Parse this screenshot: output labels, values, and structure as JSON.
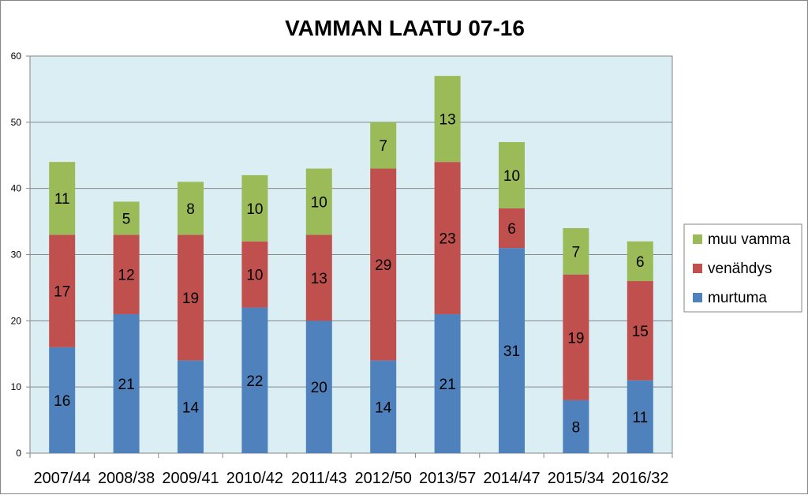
{
  "chart_data": {
    "type": "bar",
    "stacked": true,
    "title": "VAMMAN LAATU 07-16",
    "xlabel": "",
    "ylabel": "",
    "categories": [
      "2007/44",
      "2008/38",
      "2009/41",
      "2010/42",
      "2011/43",
      "2012/50",
      "2013/57",
      "2014/47",
      "2015/34",
      "2016/32"
    ],
    "series": [
      {
        "name": "murtuma",
        "color": "#4f81bd",
        "values": [
          16,
          21,
          14,
          22,
          20,
          14,
          21,
          31,
          8,
          11
        ]
      },
      {
        "name": "venähdys",
        "color": "#c0504d",
        "values": [
          17,
          12,
          19,
          10,
          13,
          29,
          23,
          6,
          19,
          15
        ]
      },
      {
        "name": "muu vamma",
        "color": "#9bbb59",
        "values": [
          11,
          5,
          8,
          10,
          10,
          7,
          13,
          10,
          7,
          6
        ]
      }
    ],
    "ylim": [
      0,
      60
    ],
    "yticks": [
      0,
      10,
      20,
      30,
      40,
      50,
      60
    ],
    "grid": true,
    "legend_position": "right",
    "legend_order": [
      "muu vamma",
      "venähdys",
      "murtuma"
    ],
    "plot_background": "#dbeef4",
    "data_labels": true
  }
}
